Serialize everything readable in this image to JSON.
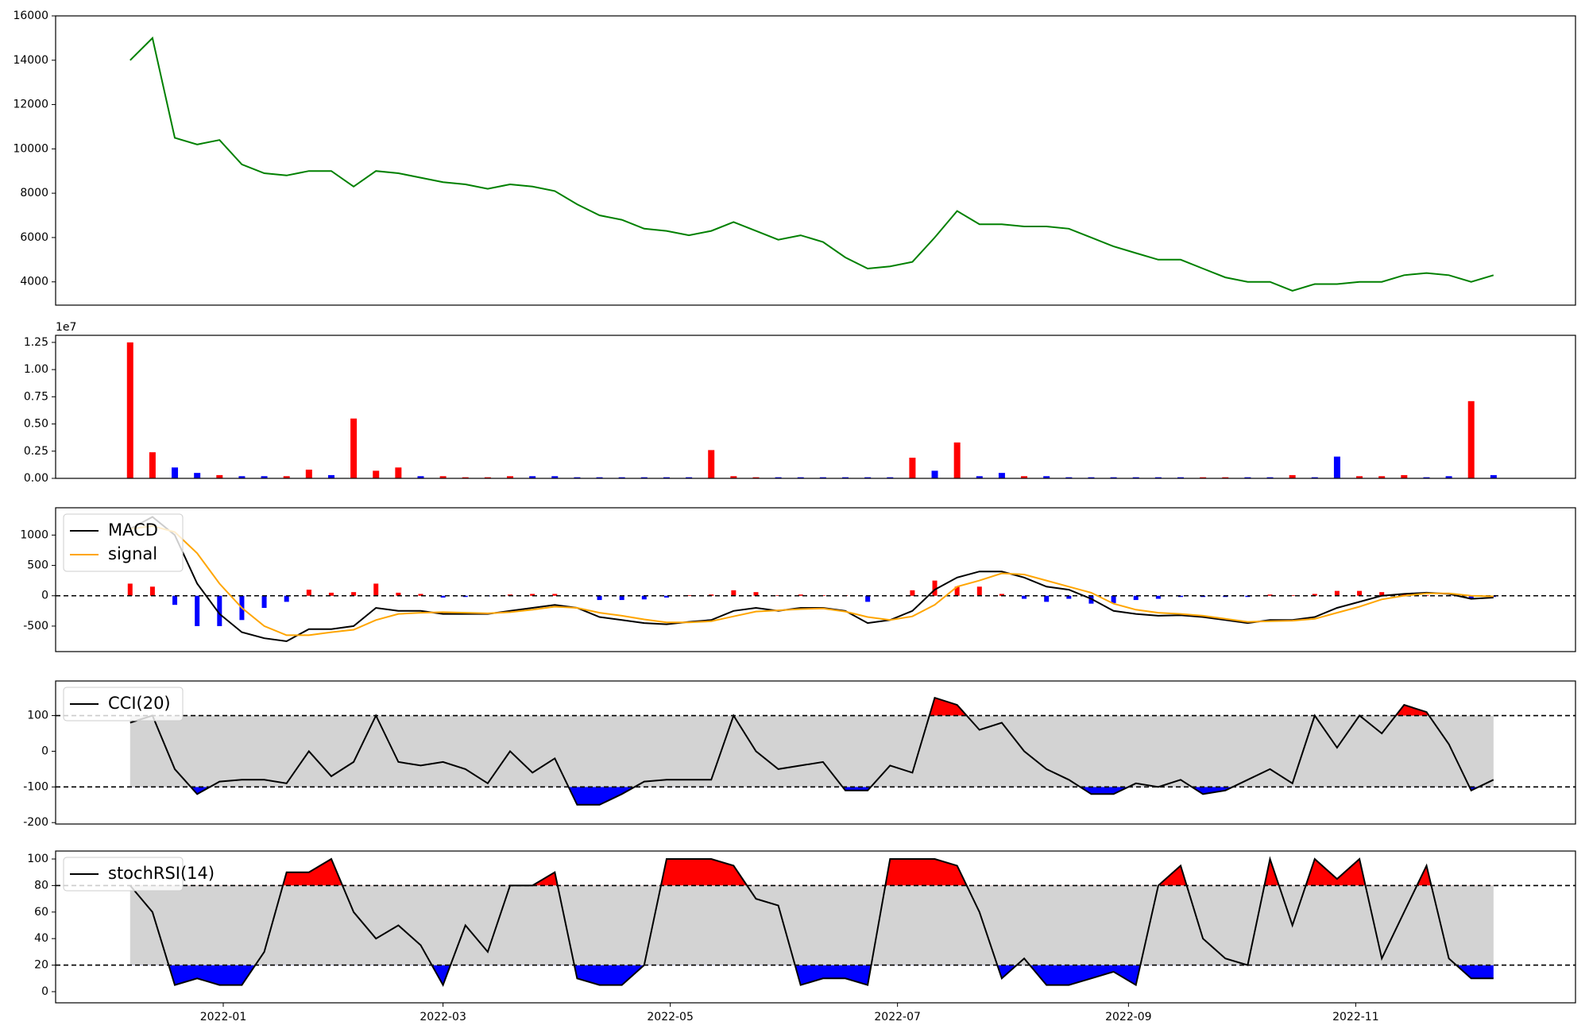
{
  "chart_data": [
    {
      "type": "line",
      "color": "green",
      "x": [
        6,
        12,
        18,
        24,
        30,
        36,
        42,
        48,
        54,
        60,
        66,
        72,
        78,
        84,
        90,
        96,
        102,
        108,
        114,
        120,
        126,
        132,
        138,
        144,
        150,
        156,
        162,
        168,
        174,
        180,
        186,
        192,
        198,
        204,
        210,
        216,
        222,
        228,
        234,
        240,
        246,
        252,
        258,
        264,
        270,
        276,
        282,
        288,
        294,
        300,
        306,
        312,
        318,
        324,
        330,
        336,
        342,
        348,
        354,
        360,
        366,
        372
      ],
      "values": [
        14000,
        15000,
        10500,
        10200,
        10400,
        9300,
        8900,
        8800,
        9000,
        9000,
        8300,
        9000,
        8900,
        8700,
        8500,
        8400,
        8200,
        8400,
        8300,
        8100,
        7500,
        7000,
        6800,
        6400,
        6300,
        6100,
        6300,
        6700,
        6300,
        5900,
        6100,
        5800,
        5100,
        4600,
        4700,
        4900,
        6000,
        7200,
        6600,
        6600,
        6500,
        6500,
        6400,
        6000,
        5600,
        5300,
        5000,
        5000,
        4600,
        4200,
        4000,
        4000,
        3600,
        3900,
        3900,
        4000,
        4000,
        4300,
        4400,
        4300,
        4000,
        4300
      ],
      "xlim": [
        -14,
        394
      ],
      "ylim": [
        2950,
        16000
      ],
      "yticks": [
        4000,
        6000,
        8000,
        10000,
        12000,
        14000,
        16000
      ]
    },
    {
      "type": "bar",
      "y_offset_label": "1e7",
      "x": [
        6,
        12,
        18,
        24,
        30,
        36,
        42,
        48,
        54,
        60,
        66,
        72,
        78,
        84,
        90,
        96,
        102,
        108,
        114,
        120,
        126,
        132,
        138,
        144,
        150,
        156,
        162,
        168,
        174,
        180,
        186,
        192,
        198,
        204,
        210,
        216,
        222,
        228,
        234,
        240,
        246,
        252,
        258,
        264,
        270,
        276,
        282,
        288,
        294,
        300,
        306,
        312,
        318,
        324,
        330,
        336,
        342,
        348,
        354,
        360,
        366,
        372
      ],
      "values": [
        12500000,
        2400000,
        1000000,
        500000,
        300000,
        200000,
        200000,
        200000,
        800000,
        300000,
        5500000,
        700000,
        1000000,
        200000,
        200000,
        100000,
        100000,
        200000,
        200000,
        200000,
        100000,
        100000,
        100000,
        100000,
        100000,
        100000,
        2600000,
        200000,
        100000,
        100000,
        100000,
        100000,
        100000,
        100000,
        100000,
        1900000,
        700000,
        3300000,
        200000,
        500000,
        200000,
        200000,
        100000,
        100000,
        100000,
        100000,
        100000,
        100000,
        100000,
        100000,
        100000,
        100000,
        300000,
        100000,
        2000000,
        200000,
        200000,
        300000,
        100000,
        200000,
        7100000,
        300000
      ],
      "colors": [
        "red",
        "red",
        "blue",
        "blue",
        "red",
        "blue",
        "blue",
        "red",
        "red",
        "blue",
        "red",
        "red",
        "red",
        "blue",
        "red",
        "red",
        "red",
        "red",
        "blue",
        "blue",
        "blue",
        "blue",
        "blue",
        "blue",
        "blue",
        "blue",
        "red",
        "red",
        "red",
        "blue",
        "blue",
        "blue",
        "blue",
        "blue",
        "blue",
        "red",
        "blue",
        "red",
        "blue",
        "blue",
        "red",
        "blue",
        "blue",
        "blue",
        "blue",
        "blue",
        "blue",
        "blue",
        "red",
        "red",
        "blue",
        "blue",
        "red",
        "blue",
        "blue",
        "red",
        "red",
        "red",
        "blue",
        "blue",
        "red",
        "blue"
      ],
      "xlim": [
        -14,
        394
      ],
      "ylim": [
        0,
        13150000
      ],
      "yticks": [
        {
          "value": 0,
          "label": "0.00"
        },
        {
          "value": 2500000,
          "label": "0.25"
        },
        {
          "value": 5000000,
          "label": "0.50"
        },
        {
          "value": 7500000,
          "label": "0.75"
        },
        {
          "value": 10000000,
          "label": "1.00"
        },
        {
          "value": 12500000,
          "label": "1.25"
        }
      ]
    },
    {
      "type": "macd",
      "legend": "upper left",
      "hlines": [
        0
      ],
      "x": [
        6,
        12,
        18,
        24,
        30,
        36,
        42,
        48,
        54,
        60,
        66,
        72,
        78,
        84,
        90,
        96,
        102,
        108,
        114,
        120,
        126,
        132,
        138,
        144,
        150,
        156,
        162,
        168,
        174,
        180,
        186,
        192,
        198,
        204,
        210,
        216,
        222,
        228,
        234,
        240,
        246,
        252,
        258,
        264,
        270,
        276,
        282,
        288,
        294,
        300,
        306,
        312,
        318,
        324,
        330,
        336,
        342,
        348,
        354,
        360,
        366,
        372
      ],
      "series": [
        {
          "name": "MACD",
          "color": "black",
          "values": [
            1100,
            1300,
            1000,
            200,
            -300,
            -600,
            -700,
            -750,
            -550,
            -550,
            -500,
            -200,
            -250,
            -250,
            -300,
            -300,
            -300,
            -250,
            -200,
            -150,
            -200,
            -350,
            -400,
            -450,
            -470,
            -430,
            -400,
            -250,
            -200,
            -250,
            -200,
            -200,
            -250,
            -450,
            -400,
            -250,
            100,
            300,
            400,
            400,
            300,
            150,
            100,
            -50,
            -250,
            -300,
            -330,
            -320,
            -350,
            -400,
            -450,
            -400,
            -400,
            -350,
            -200,
            -100,
            0,
            30,
            50,
            30,
            -50,
            -30
          ]
        },
        {
          "name": "signal",
          "color": "orange",
          "values": [
            1100,
            1150,
            1050,
            700,
            200,
            -200,
            -500,
            -650,
            -650,
            -600,
            -560,
            -400,
            -300,
            -280,
            -270,
            -280,
            -290,
            -270,
            -230,
            -180,
            -200,
            -280,
            -330,
            -390,
            -440,
            -440,
            -420,
            -340,
            -260,
            -240,
            -220,
            -210,
            -260,
            -350,
            -400,
            -340,
            -150,
            150,
            250,
            370,
            350,
            250,
            150,
            50,
            -130,
            -230,
            -280,
            -300,
            -330,
            -380,
            -430,
            -420,
            -410,
            -380,
            -280,
            -180,
            -60,
            0,
            40,
            40,
            0,
            -10
          ]
        }
      ],
      "histogram": {
        "positive_color": "red",
        "negative_color": "blue",
        "values": [
          200,
          150,
          -150,
          -500,
          -500,
          -400,
          -200,
          -100,
          100,
          50,
          60,
          200,
          50,
          30,
          -30,
          -20,
          -10,
          20,
          30,
          30,
          0,
          -70,
          -70,
          -60,
          -30,
          10,
          20,
          90,
          60,
          10,
          20,
          10,
          10,
          -100,
          0,
          90,
          250,
          150,
          150,
          30,
          -50,
          -100,
          -50,
          -130,
          -120,
          -70,
          -50,
          -20,
          -20,
          -20,
          -20,
          20,
          10,
          30,
          80,
          80,
          60,
          30,
          10,
          -10,
          -50,
          -20
        ]
      },
      "xlim": [
        -14,
        394
      ],
      "ylim": [
        -920,
        1450
      ],
      "yticks": [
        -500,
        0,
        500,
        1000
      ]
    },
    {
      "type": "oscillator",
      "legend": "upper left",
      "hlines": [
        100,
        -100
      ],
      "band_color": "lightgray",
      "upper_fill_color": "red",
      "lower_fill_color": "blue",
      "x": [
        6,
        12,
        18,
        24,
        30,
        36,
        42,
        48,
        54,
        60,
        66,
        72,
        78,
        84,
        90,
        96,
        102,
        108,
        114,
        120,
        126,
        132,
        138,
        144,
        150,
        156,
        162,
        168,
        174,
        180,
        186,
        192,
        198,
        204,
        210,
        216,
        222,
        228,
        234,
        240,
        246,
        252,
        258,
        264,
        270,
        276,
        282,
        288,
        294,
        300,
        306,
        312,
        318,
        324,
        330,
        336,
        342,
        348,
        354,
        360,
        366,
        372
      ],
      "series": [
        {
          "name": "CCI(20)",
          "color": "black",
          "values": [
            80,
            100,
            -50,
            -120,
            -85,
            -80,
            -80,
            -90,
            0,
            -70,
            -30,
            100,
            -30,
            -40,
            -30,
            -50,
            -90,
            0,
            -60,
            -20,
            -150,
            -150,
            -120,
            -85,
            -80,
            -80,
            -80,
            100,
            0,
            -50,
            -40,
            -30,
            -110,
            -110,
            -40,
            -60,
            150,
            130,
            60,
            80,
            0,
            -50,
            -80,
            -120,
            -120,
            -90,
            -100,
            -80,
            -120,
            -110,
            -80,
            -50,
            -90,
            100,
            10,
            100,
            50,
            130,
            110,
            20,
            -110,
            -80
          ]
        }
      ],
      "xlim": [
        -14,
        394
      ],
      "ylim": [
        -204,
        197
      ],
      "yticks": [
        -200,
        -100,
        0,
        100
      ]
    },
    {
      "type": "oscillator",
      "legend": "upper left",
      "hlines": [
        80,
        20
      ],
      "band_color": "lightgray",
      "upper_fill_color": "red",
      "lower_fill_color": "blue",
      "x": [
        6,
        12,
        18,
        24,
        30,
        36,
        42,
        48,
        54,
        60,
        66,
        72,
        78,
        84,
        90,
        96,
        102,
        108,
        114,
        120,
        126,
        132,
        138,
        144,
        150,
        156,
        162,
        168,
        174,
        180,
        186,
        192,
        198,
        204,
        210,
        216,
        222,
        228,
        234,
        240,
        246,
        252,
        258,
        264,
        270,
        276,
        282,
        288,
        294,
        300,
        306,
        312,
        318,
        324,
        330,
        336,
        342,
        348,
        354,
        360,
        366,
        372
      ],
      "series": [
        {
          "name": "stochRSI(14)",
          "color": "black",
          "values": [
            80,
            60,
            5,
            10,
            5,
            5,
            30,
            90,
            90,
            100,
            60,
            40,
            50,
            35,
            5,
            50,
            30,
            80,
            80,
            90,
            10,
            5,
            5,
            20,
            100,
            100,
            100,
            95,
            70,
            65,
            5,
            10,
            10,
            5,
            100,
            100,
            100,
            95,
            60,
            10,
            25,
            5,
            5,
            10,
            15,
            5,
            80,
            95,
            40,
            25,
            20,
            100,
            50,
            100,
            85,
            100,
            25,
            60,
            95,
            25,
            10,
            10
          ]
        }
      ],
      "xlim": [
        -14,
        394
      ],
      "ylim": [
        -8.4,
        106
      ],
      "yticks": [
        0,
        20,
        40,
        60,
        80,
        100
      ],
      "xticks": [
        {
          "value": 31,
          "label": "2022-01"
        },
        {
          "value": 90,
          "label": "2022-03"
        },
        {
          "value": 151,
          "label": "2022-05"
        },
        {
          "value": 212,
          "label": "2022-07"
        },
        {
          "value": 274,
          "label": "2022-09"
        },
        {
          "value": 335,
          "label": "2022-11"
        }
      ]
    }
  ]
}
